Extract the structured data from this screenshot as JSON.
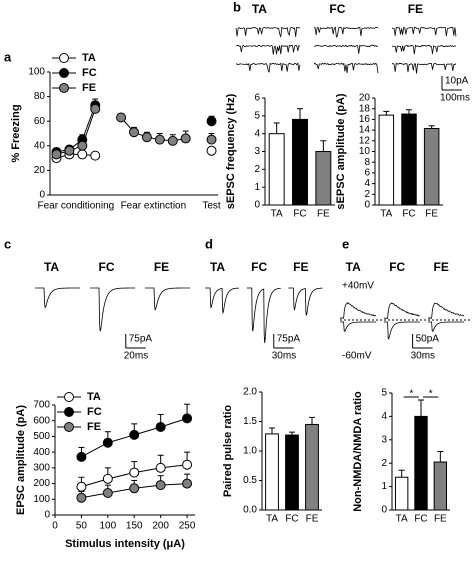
{
  "chart_data": [
    {
      "type": "line",
      "panel": "a",
      "ylabel": "% Freezing",
      "categories": [
        null,
        null,
        null,
        null,
        null,
        null,
        null,
        null,
        null,
        null,
        null,
        null,
        null
      ],
      "group_labels": [
        "Fear conditioning",
        "Fear extinction",
        "Test"
      ],
      "ylim": [
        0,
        100
      ],
      "yticks": [
        0,
        20,
        40,
        60,
        80,
        100
      ],
      "legend": "upper left",
      "series": [
        {
          "name": "TA",
          "color": "#ffffff",
          "values": [
            30,
            33,
            33,
            32,
            null,
            null,
            null,
            null,
            null,
            null,
            null,
            null,
            36
          ],
          "errors": [
            2,
            2,
            2,
            2,
            null,
            null,
            null,
            null,
            null,
            null,
            null,
            null,
            3
          ]
        },
        {
          "name": "FC",
          "color": "#000000",
          "values": [
            35,
            37,
            45,
            73,
            null,
            null,
            null,
            null,
            null,
            null,
            null,
            null,
            60
          ],
          "errors": [
            3,
            3,
            4,
            5,
            null,
            null,
            null,
            null,
            null,
            null,
            null,
            null,
            4
          ]
        },
        {
          "name": "FE",
          "color": "#808080",
          "values": [
            33,
            36,
            40,
            70,
            null,
            63,
            51,
            47,
            45,
            44,
            46,
            null,
            45
          ],
          "errors": [
            3,
            3,
            4,
            5,
            null,
            3,
            4,
            4,
            5,
            5,
            6,
            null,
            5
          ]
        }
      ]
    },
    {
      "type": "traces",
      "panel": "b",
      "labels": [
        "TA",
        "FC",
        "FE"
      ],
      "scale_labels": [
        "10pA",
        "100ms"
      ]
    },
    {
      "type": "bar",
      "ylabel": "sEPSC frequency (Hz)",
      "categories": [
        "TA",
        "FC",
        "FE"
      ],
      "values": [
        4.0,
        4.8,
        3.0
      ],
      "errors": [
        0.6,
        0.6,
        0.6
      ],
      "colors": [
        "#ffffff",
        "#000000",
        "#808080"
      ],
      "ylim": [
        0,
        6
      ],
      "yticks": [
        0,
        1,
        2,
        3,
        4,
        5,
        6
      ]
    },
    {
      "type": "bar",
      "ylabel": "sEPSC amplitude (pA)",
      "categories": [
        "TA",
        "FC",
        "FE"
      ],
      "values": [
        16.8,
        17.0,
        14.3
      ],
      "errors": [
        0.7,
        0.8,
        0.5
      ],
      "colors": [
        "#ffffff",
        "#000000",
        "#808080"
      ],
      "ylim": [
        0,
        20
      ],
      "yticks": [
        0,
        2,
        4,
        6,
        8,
        10,
        12,
        14,
        16,
        18,
        20
      ]
    },
    {
      "type": "traces",
      "panel": "c",
      "labels": [
        "TA",
        "FC",
        "FE"
      ],
      "scale_labels": [
        "75pA",
        "20ms"
      ]
    },
    {
      "type": "line",
      "ylabel": "EPSC amplitude (pA)",
      "xlabel": "Stimulus intensity (μA)",
      "x": [
        50,
        100,
        150,
        200,
        250
      ],
      "xlim": [
        0,
        265
      ],
      "xticks": [
        0,
        50,
        100,
        150,
        200,
        250
      ],
      "ylim": [
        0,
        700
      ],
      "yticks": [
        0,
        100,
        200,
        300,
        400,
        500,
        600,
        700
      ],
      "legend": "upper left",
      "series": [
        {
          "name": "TA",
          "color": "#ffffff",
          "values": [
            180,
            230,
            270,
            300,
            320
          ],
          "errors": [
            60,
            70,
            70,
            80,
            80
          ]
        },
        {
          "name": "FC",
          "color": "#000000",
          "values": [
            370,
            460,
            510,
            560,
            615
          ],
          "errors": [
            60,
            70,
            70,
            80,
            90
          ]
        },
        {
          "name": "FE",
          "color": "#808080",
          "values": [
            110,
            140,
            170,
            190,
            200
          ],
          "errors": [
            40,
            50,
            50,
            60,
            60
          ]
        }
      ]
    },
    {
      "type": "traces",
      "panel": "d",
      "labels": [
        "TA",
        "FC",
        "FE"
      ],
      "scale_labels": [
        "75pA",
        "30ms"
      ]
    },
    {
      "type": "bar",
      "ylabel": "Paired pulse ratio",
      "categories": [
        "TA",
        "FC",
        "FE"
      ],
      "values": [
        1.29,
        1.27,
        1.45
      ],
      "errors": [
        0.1,
        0.05,
        0.12
      ],
      "colors": [
        "#ffffff",
        "#000000",
        "#808080"
      ],
      "ylim": [
        0,
        2
      ],
      "yticks": [
        {
          "value": 0,
          "label": "0.0"
        },
        {
          "value": 0.5,
          "label": "0.5"
        },
        {
          "value": 1,
          "label": "1.0"
        },
        {
          "value": 1.5,
          "label": "1.5"
        },
        {
          "value": 2,
          "label": "2.0"
        }
      ]
    },
    {
      "type": "traces",
      "panel": "e",
      "labels": [
        "TA",
        "FC",
        "FE"
      ],
      "scale_labels": [
        "50pA",
        "30ms"
      ],
      "voltage_labels": [
        "+40mV",
        "-60mV"
      ]
    },
    {
      "type": "bar",
      "ylabel": "Non-NMDA/NMDA ratio",
      "categories": [
        "TA",
        "FC",
        "FE"
      ],
      "values": [
        1.4,
        4.0,
        2.05
      ],
      "errors": [
        0.3,
        0.7,
        0.45
      ],
      "colors": [
        "#ffffff",
        "#000000",
        "#808080"
      ],
      "ylim": [
        0,
        5
      ],
      "yticks": [
        0,
        1,
        2,
        3,
        4,
        5
      ],
      "significance": [
        "*",
        "*"
      ]
    }
  ]
}
